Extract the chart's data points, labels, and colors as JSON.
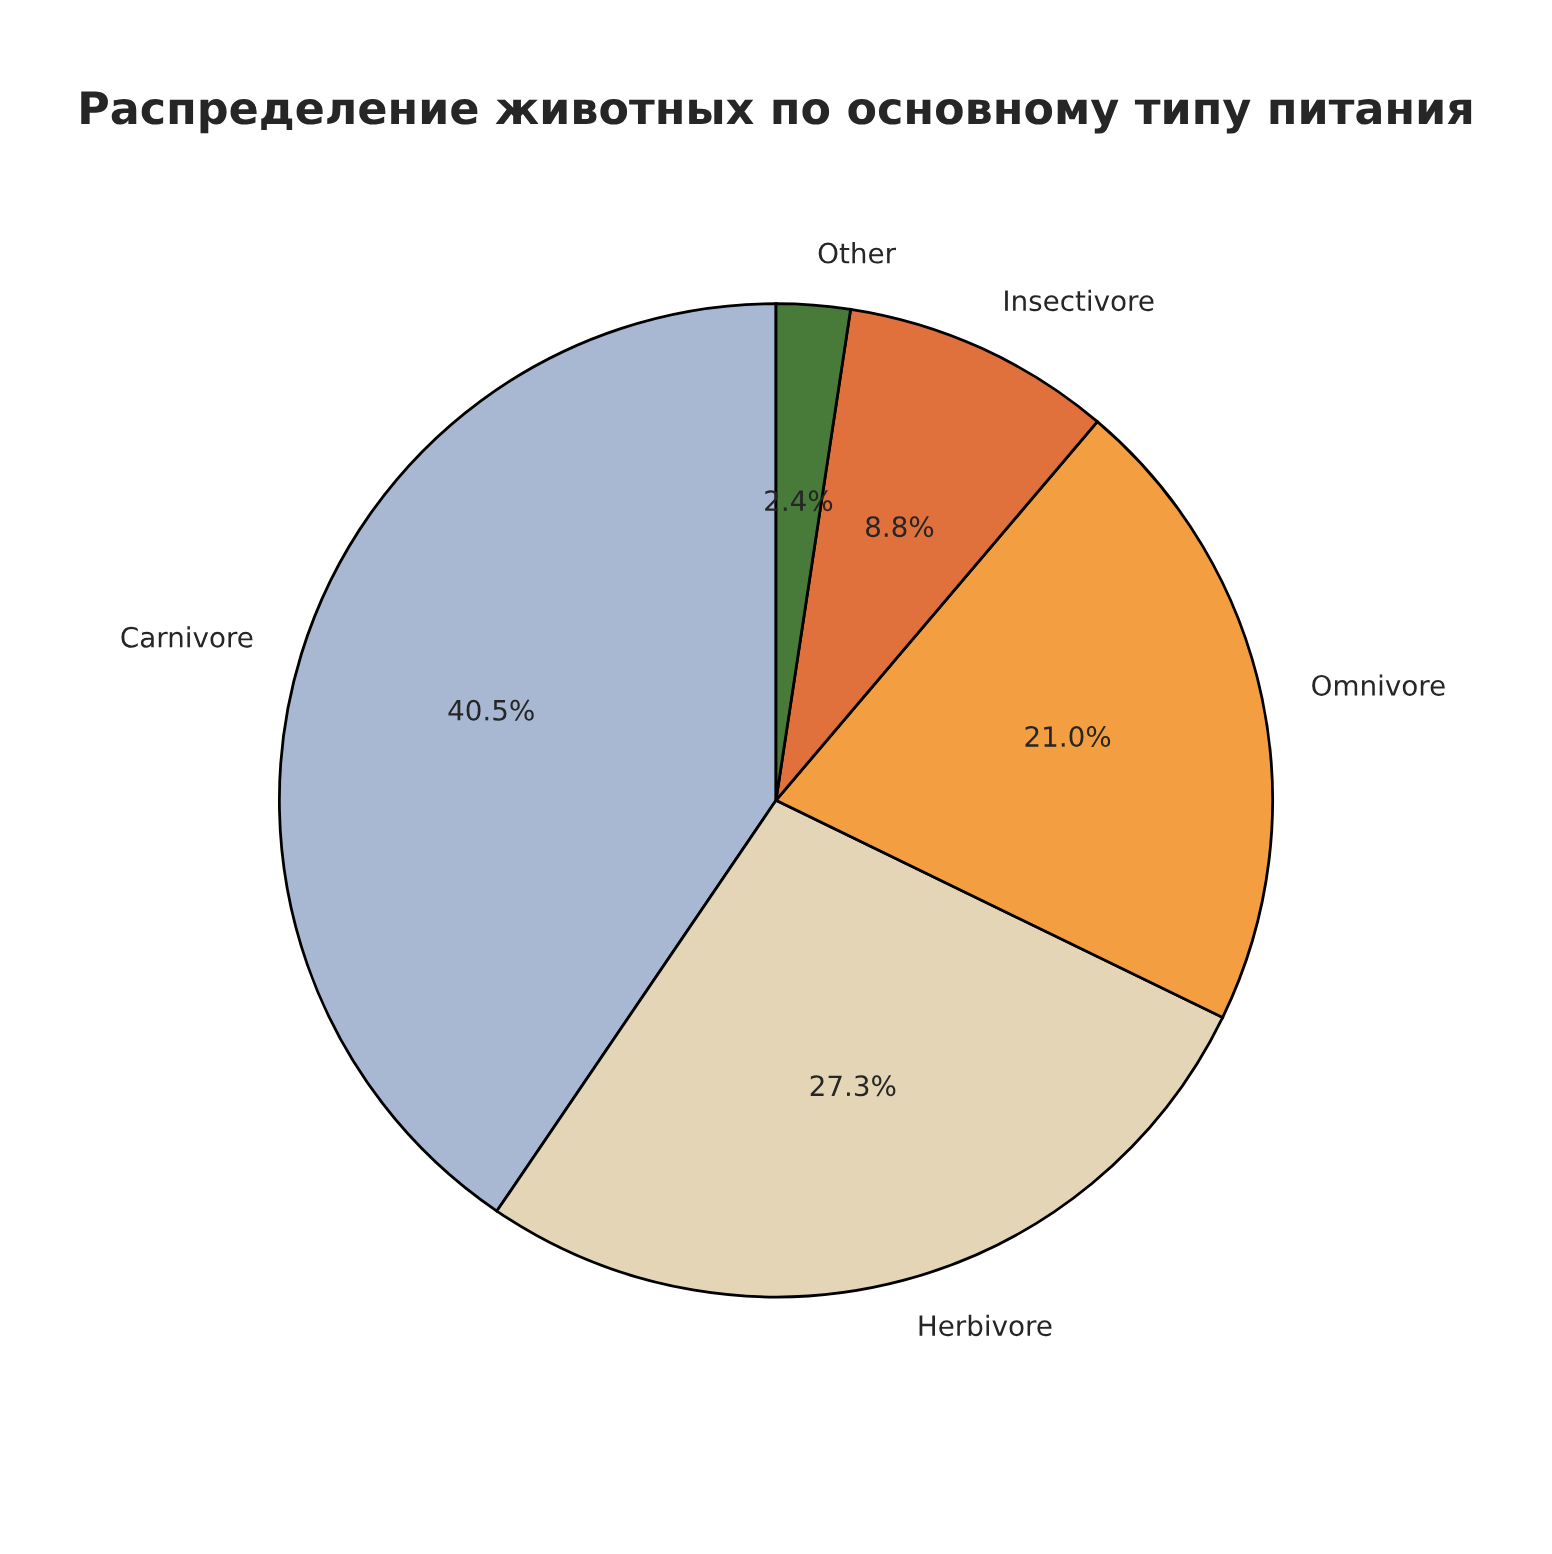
{
  "chart_data": {
    "type": "pie",
    "title": "Распределение животных по основному типу питания",
    "categories": [
      "Carnivore",
      "Herbivore",
      "Omnivore",
      "Insectivore",
      "Other"
    ],
    "values": [
      40.5,
      27.3,
      21.0,
      8.8,
      2.4
    ],
    "value_labels": [
      "40.5%",
      "27.3%",
      "21.0%",
      "8.8%",
      "2.4%"
    ],
    "colors": [
      "#a8b8d3",
      "#e3d5b6",
      "#f39f41",
      "#e0703c",
      "#487b3a"
    ],
    "legend": false
  }
}
